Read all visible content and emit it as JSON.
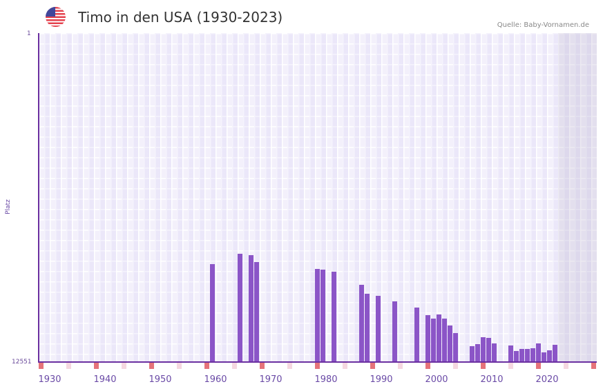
{
  "header": {
    "flag_icon": "us-flag-icon",
    "title": "Timo in den USA (1930-2023)",
    "source": "Quelle: Baby-Vornamen.de"
  },
  "colors": {
    "bar": "#8b55c7",
    "axis": "#6a2fa0",
    "marker_decade": "#e5737a",
    "marker_half": "#f5d8e0",
    "plot_bg": "#f3f0fb"
  },
  "chart_data": {
    "type": "bar",
    "title": "Timo in den USA (1930-2023)",
    "xlabel": "",
    "ylabel": "Platz",
    "y_inverted": true,
    "ylim": [
      1,
      12551
    ],
    "yticks": [
      "1",
      "12551"
    ],
    "xticks": [
      "1930",
      "1940",
      "1950",
      "1960",
      "1970",
      "1980",
      "1990",
      "2000",
      "2010",
      "2020"
    ],
    "x_start": 1928,
    "x_end": 2028,
    "future_shade_from": 2022,
    "grid": true,
    "categories": [
      1959,
      1964,
      1966,
      1967,
      1978,
      1979,
      1981,
      1986,
      1987,
      1989,
      1992,
      1996,
      1998,
      1999,
      2000,
      2001,
      2002,
      2003,
      2006,
      2007,
      2008,
      2009,
      2010,
      2013,
      2014,
      2015,
      2016,
      2017,
      2018,
      2019,
      2020,
      2021
    ],
    "values": [
      8815,
      8420,
      8473,
      8736,
      9000,
      9025,
      9105,
      9603,
      9945,
      10025,
      10235,
      10472,
      10762,
      10893,
      10735,
      10893,
      11156,
      11445,
      11945,
      11866,
      11603,
      11629,
      11840,
      11919,
      12130,
      12051,
      12051,
      12024,
      11840,
      12182,
      12103,
      11893
    ]
  },
  "axes": {
    "y_top": "1",
    "y_bottom": "12551",
    "y_title": "Platz"
  }
}
